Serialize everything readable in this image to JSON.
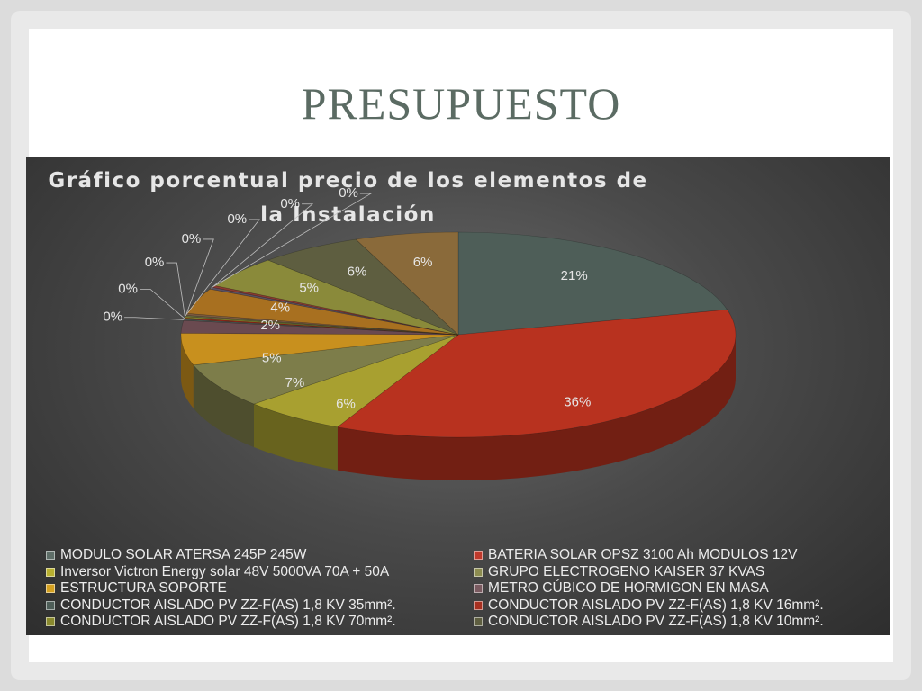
{
  "slide": {
    "title": "PRESUPUESTO"
  },
  "chart_data": {
    "type": "pie",
    "title": "Gráfico porcentual precio de los elementos de la Instalación",
    "title_lines": [
      "Gráfico porcentual precio de los elementos de",
      "la Instalación"
    ],
    "legend_position": "bottom",
    "slices": [
      {
        "name": "MODULO SOLAR ATERSA 245P 245W",
        "value": 21,
        "label": "21%",
        "color": "#4e5e58"
      },
      {
        "name": "BATERIA SOLAR OPSZ 3100 Ah MODULOS 12V",
        "value": 36,
        "label": "36%",
        "color": "#b8321f"
      },
      {
        "name": " Inversor Victron Energy solar 48V 5000VA 70A + 50A",
        "value": 6,
        "label": "6%",
        "color": "#a8a030"
      },
      {
        "name": "GRUPO ELECTROGENO KAISER 37 KVAS",
        "value": 7,
        "label": "7%",
        "color": "#7d7d4a"
      },
      {
        "name": "ESTRUCTURA SOPORTE",
        "value": 5,
        "label": "5%",
        "color": "#c8901e"
      },
      {
        "name": "METRO CÚBICO DE HORMIGON EN MASA",
        "value": 2,
        "label": "2%",
        "color": "#6a4a50"
      },
      {
        "name": "CONDUCTOR AISLADO PV ZZ-F(AS) 1,8 KV  35mm².",
        "value": 0.2,
        "label": "0%",
        "color": "#4d5a55"
      },
      {
        "name": "CONDUCTOR AISLADO PV ZZ-F(AS) 1,8 KV  16mm².",
        "value": 0.2,
        "label": "0%",
        "color": "#9c2a1a"
      },
      {
        "name": "CONDUCTOR AISLADO PV ZZ-F(AS) 1,8 KV  70mm².",
        "value": 0.2,
        "label": "0%",
        "color": "#8a8a2e"
      },
      {
        "name": "CONDUCTOR AISLADO PV ZZ-F(AS) 1,8 KV  10mm².",
        "value": 0.2,
        "label": "0%",
        "color": "#6a6a40"
      },
      {
        "name": "",
        "value": 0.3,
        "label": "0%",
        "color": "#7a5a40"
      },
      {
        "name": "",
        "value": 4,
        "label": "4%",
        "color": "#a87020"
      },
      {
        "name": "",
        "value": 0.3,
        "label": "0%",
        "color": "#5a5060"
      },
      {
        "name": "",
        "value": 0.3,
        "label": "0%",
        "color": "#8a3a30"
      },
      {
        "name": "",
        "value": 5,
        "label": "5%",
        "color": "#8a8a3a"
      },
      {
        "name": "",
        "value": 6,
        "label": "6%",
        "color": "#5e5e40"
      },
      {
        "name": "",
        "value": 6,
        "label": "6%",
        "color": "#8a6a3a"
      }
    ],
    "legend": [
      {
        "name": "MODULO SOLAR ATERSA 245P 245W",
        "color": "#5e6e68"
      },
      {
        "name": "BATERIA SOLAR OPSZ 3100 Ah MODULOS 12V",
        "color": "#c0392b"
      },
      {
        "name": " Inversor Victron Energy solar 48V 5000VA 70A + 50A",
        "color": "#b8b030"
      },
      {
        "name": "GRUPO ELECTROGENO KAISER 37 KVAS",
        "color": "#8c8c50"
      },
      {
        "name": "ESTRUCTURA SOPORTE",
        "color": "#d4a020"
      },
      {
        "name": "METRO CÚBICO DE HORMIGON EN MASA",
        "color": "#7a5a60"
      },
      {
        "name": "CONDUCTOR AISLADO PV ZZ-F(AS) 1,8 KV  35mm².",
        "color": "#4e5e58"
      },
      {
        "name": "CONDUCTOR AISLADO PV ZZ-F(AS) 1,8 KV  16mm².",
        "color": "#a83020"
      },
      {
        "name": "CONDUCTOR AISLADO PV ZZ-F(AS) 1,8 KV  70mm².",
        "color": "#8a8a2e"
      },
      {
        "name": "CONDUCTOR AISLADO PV ZZ-F(AS) 1,8 KV  10mm².",
        "color": "#5e5e40"
      }
    ]
  }
}
